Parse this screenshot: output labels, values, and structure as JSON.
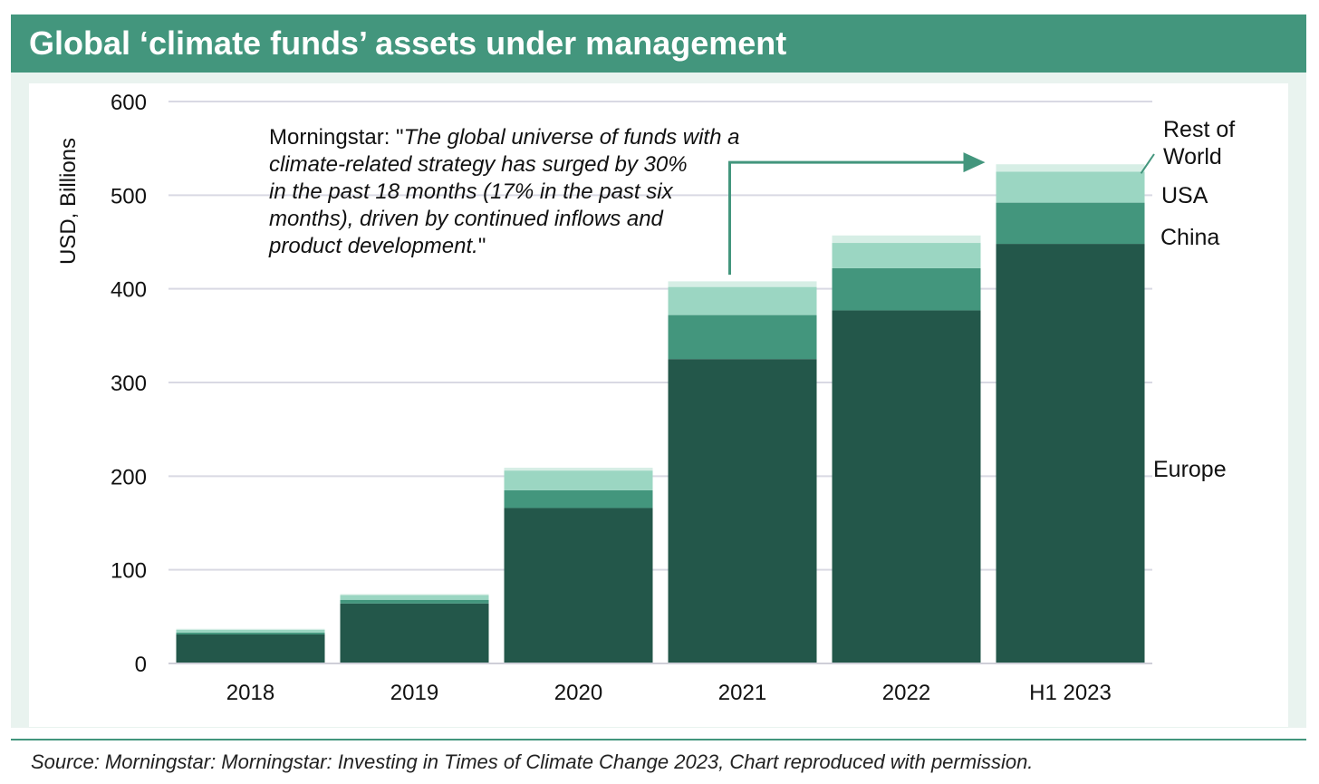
{
  "header": {
    "title": "Global ‘climate funds’ assets under management"
  },
  "source": "Source: Morningstar: Morningstar: Investing in Times of Climate Change 2023, Chart reproduced with permission.",
  "annotation": {
    "prefix": "Morningstar: \"",
    "lines": [
      "The global universe of funds with a",
      "climate-related strategy has surged by 30%",
      "in the past 18 months (17% in the past six",
      "months), driven by continued inflows and",
      "product development."
    ],
    "suffix": "\""
  },
  "segment_labels": {
    "rest_of_world": [
      "Rest of",
      "World"
    ],
    "usa": "USA",
    "china": "China",
    "europe": "Europe"
  },
  "colors": {
    "header": "#43967d",
    "europe": "#23574a",
    "china": "#43967d",
    "usa": "#9bd6c2",
    "rest_of_world": "#d6eee5",
    "arrow": "#43967d",
    "grid": "#d9d9e3"
  },
  "chart_data": {
    "type": "bar",
    "stacked": true,
    "categories": [
      "2018",
      "2019",
      "2020",
      "2021",
      "2022",
      "H1 2023"
    ],
    "series": [
      {
        "name": "Europe",
        "values": [
          31,
          64,
          166,
          325,
          377,
          448
        ]
      },
      {
        "name": "China",
        "values": [
          2,
          4,
          19,
          47,
          45,
          44
        ]
      },
      {
        "name": "USA",
        "values": [
          3,
          5,
          21,
          30,
          27,
          33
        ]
      },
      {
        "name": "Rest of World",
        "values": [
          1,
          1,
          3,
          6,
          8,
          8
        ]
      }
    ],
    "yticks": [
      "0",
      "100",
      "200",
      "300",
      "400",
      "500",
      "600"
    ],
    "ylim": [
      0,
      600
    ],
    "xlabel": "",
    "ylabel": "USD, Billions",
    "grid": true,
    "legend": "direct labels at right of last bar"
  }
}
